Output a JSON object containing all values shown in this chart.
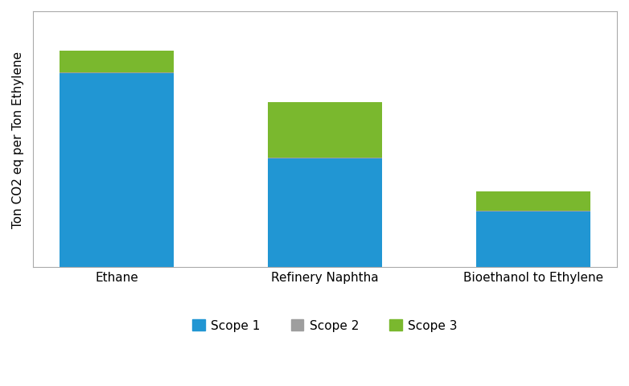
{
  "categories": [
    "Ethane",
    "Refinery Naphtha",
    "Bioethanol to Ethylene"
  ],
  "scope1": [
    1.82,
    1.02,
    0.52
  ],
  "scope2": [
    0.01,
    0.01,
    0.01
  ],
  "scope3": [
    0.2,
    0.52,
    0.18
  ],
  "colors": {
    "scope1": "#2196d3",
    "scope2": "#9e9e9e",
    "scope3": "#7ab82e"
  },
  "ylabel": "Ton CO2 eq per Ton Ethylene",
  "legend_labels": [
    "Scope 1",
    "Scope 2",
    "Scope 3"
  ],
  "bar_width": 0.55,
  "background_color": "#ffffff",
  "ylim": [
    0,
    2.4
  ],
  "legend_marker_size": 10,
  "spine_color": "#aaaaaa",
  "tick_fontsize": 11
}
